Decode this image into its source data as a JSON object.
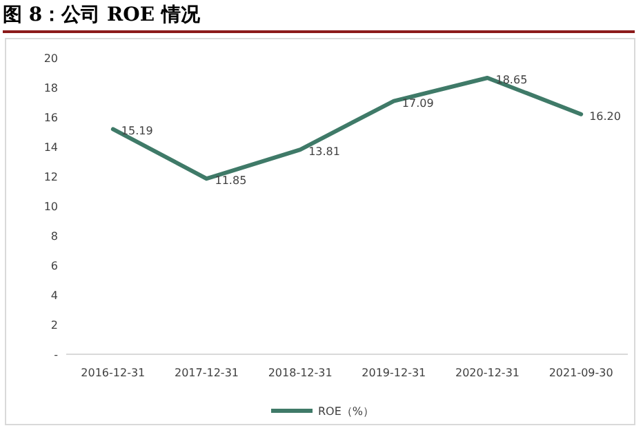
{
  "chart_data": {
    "type": "line",
    "title": "图 8：公司 ROE 情况",
    "categories": [
      "2016-12-31",
      "2017-12-31",
      "2018-12-31",
      "2019-12-31",
      "2020-12-31",
      "2021-09-30"
    ],
    "series": [
      {
        "name": "ROE（%）",
        "color": "#3f7a68",
        "values": [
          15.19,
          11.85,
          13.81,
          17.09,
          18.65,
          16.2
        ],
        "value_labels": [
          "15.19",
          "11.85",
          "13.81",
          "17.09",
          "18.65",
          "16.20"
        ]
      }
    ],
    "ylim": [
      0,
      20
    ],
    "yticks": [
      {
        "value": 0,
        "label": "-"
      },
      2,
      4,
      6,
      8,
      10,
      12,
      14,
      16,
      18,
      20
    ],
    "grid": false,
    "legend": "bottom",
    "marker": "none",
    "line_style": "solid"
  }
}
